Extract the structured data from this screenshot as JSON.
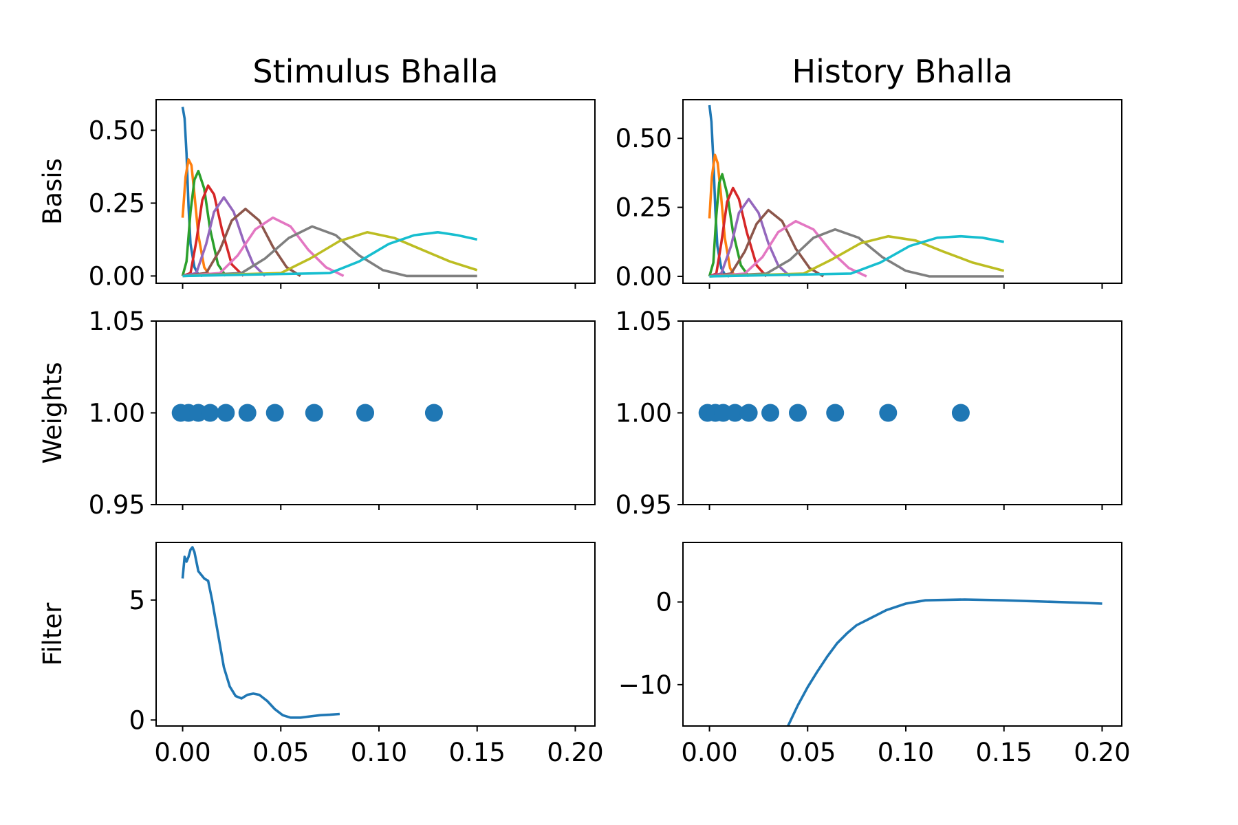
{
  "chart_data": [
    {
      "type": "line",
      "title": "Stimulus Bhalla",
      "ylabel": "Basis",
      "xlim": [
        -0.0135,
        0.21
      ],
      "ylim": [
        -0.025,
        0.605
      ],
      "xticks": [
        0.0,
        0.05,
        0.1,
        0.15,
        0.2
      ],
      "xtick_labels_visible": false,
      "yticks": [
        0.0,
        0.25,
        0.5
      ],
      "ytick_labels": [
        "0.00",
        "0.25",
        "0.50"
      ],
      "series": [
        {
          "color": "#1f77b4",
          "x": [
            0,
            0.001,
            0.002,
            0.003,
            0.004,
            0.006,
            0.008,
            0.01
          ],
          "y": [
            0.58,
            0.54,
            0.42,
            0.24,
            0.11,
            0.03,
            0.005,
            0
          ]
        },
        {
          "color": "#ff7f0e",
          "x": [
            0,
            0.0015,
            0.003,
            0.0045,
            0.006,
            0.008,
            0.011,
            0.014
          ],
          "y": [
            0.2,
            0.34,
            0.4,
            0.38,
            0.28,
            0.14,
            0.03,
            0
          ]
        },
        {
          "color": "#2ca02c",
          "x": [
            0,
            0.002,
            0.004,
            0.006,
            0.008,
            0.011,
            0.014,
            0.018,
            0.022
          ],
          "y": [
            0,
            0.05,
            0.22,
            0.33,
            0.36,
            0.3,
            0.16,
            0.04,
            0
          ]
        },
        {
          "color": "#d62728",
          "x": [
            0,
            0.004,
            0.007,
            0.01,
            0.013,
            0.016,
            0.02,
            0.025,
            0.031
          ],
          "y": [
            0,
            0.01,
            0.12,
            0.26,
            0.31,
            0.28,
            0.16,
            0.04,
            0
          ]
        },
        {
          "color": "#9467bd",
          "x": [
            0,
            0.007,
            0.012,
            0.016,
            0.021,
            0.026,
            0.031,
            0.036,
            0.042
          ],
          "y": [
            0,
            0.01,
            0.11,
            0.22,
            0.27,
            0.22,
            0.12,
            0.04,
            0
          ]
        },
        {
          "color": "#8c564b",
          "x": [
            0,
            0.012,
            0.019,
            0.025,
            0.032,
            0.039,
            0.046,
            0.053,
            0.06
          ],
          "y": [
            0,
            0.01,
            0.09,
            0.19,
            0.23,
            0.19,
            0.1,
            0.03,
            0
          ]
        },
        {
          "color": "#e377c2",
          "x": [
            0,
            0.019,
            0.028,
            0.037,
            0.046,
            0.055,
            0.064,
            0.073,
            0.082
          ],
          "y": [
            0,
            0.01,
            0.07,
            0.16,
            0.2,
            0.17,
            0.09,
            0.03,
            0
          ]
        },
        {
          "color": "#7f7f7f",
          "x": [
            0,
            0.03,
            0.042,
            0.054,
            0.066,
            0.078,
            0.09,
            0.102,
            0.114,
            0.15
          ],
          "y": [
            0,
            0.01,
            0.06,
            0.13,
            0.17,
            0.14,
            0.07,
            0.02,
            0,
            0
          ]
        },
        {
          "color": "#bcbd22",
          "x": [
            0,
            0.05,
            0.065,
            0.08,
            0.094,
            0.108,
            0.122,
            0.136,
            0.15
          ],
          "y": [
            0,
            0.01,
            0.06,
            0.12,
            0.15,
            0.13,
            0.09,
            0.05,
            0.02
          ]
        },
        {
          "color": "#17becf",
          "x": [
            0,
            0.075,
            0.09,
            0.105,
            0.118,
            0.13,
            0.14,
            0.15
          ],
          "y": [
            0,
            0.01,
            0.05,
            0.11,
            0.14,
            0.15,
            0.14,
            0.125
          ]
        }
      ]
    },
    {
      "type": "line",
      "title": "History Bhalla",
      "ylabel": "",
      "xlim": [
        -0.0135,
        0.21
      ],
      "ylim": [
        -0.025,
        0.64
      ],
      "xticks": [
        0.0,
        0.05,
        0.1,
        0.15,
        0.2
      ],
      "xtick_labels_visible": false,
      "yticks": [
        0.0,
        0.25,
        0.5
      ],
      "ytick_labels": [
        "0.00",
        "0.25",
        "0.50"
      ],
      "series": [
        {
          "color": "#1f77b4",
          "x": [
            0,
            0.001,
            0.002,
            0.003,
            0.004,
            0.006,
            0.008,
            0.01
          ],
          "y": [
            0.62,
            0.56,
            0.42,
            0.24,
            0.11,
            0.03,
            0.005,
            0
          ]
        },
        {
          "color": "#ff7f0e",
          "x": [
            0,
            0.0012,
            0.0028,
            0.0042,
            0.0058,
            0.0078,
            0.0105,
            0.013
          ],
          "y": [
            0.21,
            0.36,
            0.44,
            0.41,
            0.3,
            0.14,
            0.03,
            0
          ]
        },
        {
          "color": "#2ca02c",
          "x": [
            0,
            0.002,
            0.0035,
            0.005,
            0.0065,
            0.009,
            0.012,
            0.016,
            0.02
          ],
          "y": [
            0,
            0.05,
            0.22,
            0.34,
            0.37,
            0.3,
            0.16,
            0.04,
            0
          ]
        },
        {
          "color": "#d62728",
          "x": [
            0,
            0.0035,
            0.006,
            0.009,
            0.012,
            0.015,
            0.019,
            0.024,
            0.029
          ],
          "y": [
            0,
            0.01,
            0.12,
            0.27,
            0.32,
            0.28,
            0.16,
            0.04,
            0
          ]
        },
        {
          "color": "#9467bd",
          "x": [
            0,
            0.006,
            0.011,
            0.015,
            0.02,
            0.025,
            0.03,
            0.035,
            0.041
          ],
          "y": [
            0,
            0.01,
            0.11,
            0.23,
            0.28,
            0.23,
            0.12,
            0.04,
            0
          ]
        },
        {
          "color": "#8c564b",
          "x": [
            0,
            0.011,
            0.018,
            0.024,
            0.03,
            0.037,
            0.044,
            0.051,
            0.058
          ],
          "y": [
            0,
            0.01,
            0.09,
            0.19,
            0.24,
            0.2,
            0.1,
            0.03,
            0
          ]
        },
        {
          "color": "#e377c2",
          "x": [
            0,
            0.018,
            0.027,
            0.035,
            0.044,
            0.053,
            0.062,
            0.071,
            0.08
          ],
          "y": [
            0,
            0.01,
            0.07,
            0.16,
            0.2,
            0.17,
            0.09,
            0.03,
            0
          ]
        },
        {
          "color": "#7f7f7f",
          "x": [
            0,
            0.029,
            0.041,
            0.053,
            0.064,
            0.076,
            0.088,
            0.1,
            0.112,
            0.15
          ],
          "y": [
            0,
            0.01,
            0.06,
            0.14,
            0.17,
            0.14,
            0.07,
            0.02,
            0,
            0
          ]
        },
        {
          "color": "#bcbd22",
          "x": [
            0,
            0.048,
            0.062,
            0.077,
            0.091,
            0.105,
            0.119,
            0.134,
            0.15
          ],
          "y": [
            0,
            0.01,
            0.06,
            0.12,
            0.145,
            0.13,
            0.09,
            0.05,
            0.02
          ]
        },
        {
          "color": "#17becf",
          "x": [
            0,
            0.072,
            0.087,
            0.102,
            0.116,
            0.128,
            0.139,
            0.15
          ],
          "y": [
            0,
            0.01,
            0.05,
            0.11,
            0.14,
            0.145,
            0.14,
            0.125
          ]
        }
      ]
    },
    {
      "type": "scatter",
      "title": "",
      "ylabel": "Weights",
      "xlim": [
        -0.0135,
        0.21
      ],
      "ylim": [
        0.95,
        1.05
      ],
      "xticks": [
        0.0,
        0.05,
        0.1,
        0.15,
        0.2
      ],
      "xtick_labels_visible": false,
      "yticks": [
        0.95,
        1.0,
        1.05
      ],
      "ytick_labels": [
        "0.95",
        "1.00",
        "1.05"
      ],
      "series": [
        {
          "color": "#1f77b4",
          "x": [
            -0.001,
            0.003,
            0.008,
            0.014,
            0.022,
            0.033,
            0.047,
            0.067,
            0.093,
            0.128
          ],
          "y": [
            1,
            1,
            1,
            1,
            1,
            1,
            1,
            1,
            1,
            1
          ]
        }
      ]
    },
    {
      "type": "scatter",
      "title": "",
      "ylabel": "",
      "xlim": [
        -0.0135,
        0.21
      ],
      "ylim": [
        0.95,
        1.05
      ],
      "xticks": [
        0.0,
        0.05,
        0.1,
        0.15,
        0.2
      ],
      "xtick_labels_visible": false,
      "yticks": [
        0.95,
        1.0,
        1.05
      ],
      "ytick_labels": [
        "0.95",
        "1.00",
        "1.05"
      ],
      "series": [
        {
          "color": "#1f77b4",
          "x": [
            -0.001,
            0.003,
            0.007,
            0.013,
            0.02,
            0.031,
            0.045,
            0.064,
            0.091,
            0.128
          ],
          "y": [
            1,
            1,
            1,
            1,
            1,
            1,
            1,
            1,
            1,
            1
          ]
        }
      ]
    },
    {
      "type": "line",
      "title": "",
      "ylabel": "Filter",
      "xlim": [
        -0.0135,
        0.21
      ],
      "ylim": [
        -0.25,
        7.4
      ],
      "xticks": [
        0.0,
        0.05,
        0.1,
        0.15,
        0.2
      ],
      "xtick_labels": [
        "0.00",
        "0.05",
        "0.10",
        "0.15",
        "0.20"
      ],
      "xtick_labels_visible": true,
      "yticks": [
        0,
        5
      ],
      "ytick_labels": [
        "0",
        "5"
      ],
      "series": [
        {
          "color": "#1f77b4",
          "x": [
            0,
            0.001,
            0.002,
            0.003,
            0.004,
            0.005,
            0.006,
            0.008,
            0.011,
            0.013,
            0.015,
            0.018,
            0.021,
            0.024,
            0.027,
            0.03,
            0.033,
            0.036,
            0.039,
            0.043,
            0.047,
            0.051,
            0.055,
            0.06,
            0.065,
            0.07,
            0.075,
            0.08
          ],
          "y": [
            5.9,
            6.8,
            6.6,
            6.8,
            7.1,
            7.2,
            7.0,
            6.2,
            5.9,
            5.8,
            5.0,
            3.6,
            2.2,
            1.4,
            1.0,
            0.9,
            1.05,
            1.1,
            1.05,
            0.8,
            0.45,
            0.2,
            0.1,
            0.1,
            0.15,
            0.2,
            0.22,
            0.25
          ]
        }
      ]
    },
    {
      "type": "line",
      "title": "",
      "ylabel": "",
      "xlim": [
        -0.0135,
        0.21
      ],
      "ylim": [
        -15,
        7.2
      ],
      "xticks": [
        0.0,
        0.05,
        0.1,
        0.15,
        0.2
      ],
      "xtick_labels": [
        "0.00",
        "0.05",
        "0.10",
        "0.15",
        "0.20"
      ],
      "xtick_labels_visible": true,
      "yticks": [
        -10,
        0
      ],
      "ytick_labels": [
        "−10",
        "0"
      ],
      "series": [
        {
          "color": "#1f77b4",
          "x": [
            0.04,
            0.045,
            0.05,
            0.055,
            0.06,
            0.065,
            0.07,
            0.075,
            0.08,
            0.09,
            0.1,
            0.11,
            0.13,
            0.15,
            0.17,
            0.19,
            0.2
          ],
          "y": [
            -15,
            -12.5,
            -10.3,
            -8.4,
            -6.6,
            -5.0,
            -3.8,
            -2.8,
            -2.2,
            -1.0,
            -0.2,
            0.2,
            0.3,
            0.2,
            0.05,
            -0.1,
            -0.2
          ]
        }
      ]
    }
  ]
}
